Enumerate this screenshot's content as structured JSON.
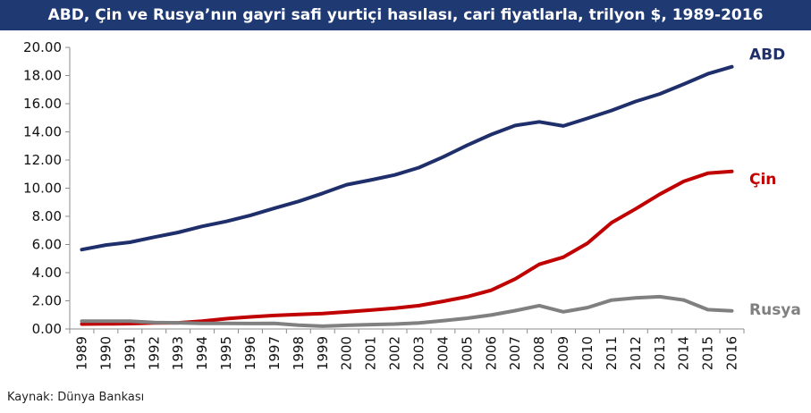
{
  "header": {
    "title": "ABD, Çin ve Rusya’nın gayri safi yurtiçi hasılası, cari fiyatlarla, trilyon $, 1989-2016",
    "background": "#1f3a73"
  },
  "footer": {
    "source": "Kaynak: Dünya Bankası"
  },
  "chart_data": {
    "type": "line",
    "title": "ABD, Çin ve Rusya’nın gayri safi yurtiçi hasılası, cari fiyatlarla, trilyon $, 1989-2016",
    "xlabel": "",
    "ylabel": "",
    "ylim": [
      0,
      20
    ],
    "yticks": [
      "0.00",
      "2.00",
      "4.00",
      "6.00",
      "8.00",
      "10.00",
      "12.00",
      "14.00",
      "16.00",
      "18.00",
      "20.00"
    ],
    "grid": false,
    "legend": "inline labels at line ends",
    "x": [
      "1989",
      "1990",
      "1991",
      "1992",
      "1993",
      "1994",
      "1995",
      "1996",
      "1997",
      "1998",
      "1999",
      "2000",
      "2001",
      "2002",
      "2003",
      "2004",
      "2005",
      "2006",
      "2007",
      "2008",
      "2009",
      "2010",
      "2011",
      "2012",
      "2013",
      "2014",
      "2015",
      "2016"
    ],
    "series": [
      {
        "name": "ABD",
        "color": "#1f2f6b",
        "values": [
          5.64,
          5.96,
          6.16,
          6.52,
          6.86,
          7.29,
          7.64,
          8.07,
          8.58,
          9.06,
          9.63,
          10.25,
          10.58,
          10.94,
          11.46,
          12.21,
          13.04,
          13.81,
          14.45,
          14.71,
          14.42,
          14.96,
          15.52,
          16.16,
          16.69,
          17.39,
          18.12,
          18.62
        ]
      },
      {
        "name": "Çin",
        "color": "#c00000",
        "values": [
          0.35,
          0.36,
          0.38,
          0.43,
          0.44,
          0.56,
          0.73,
          0.86,
          0.96,
          1.03,
          1.09,
          1.21,
          1.34,
          1.47,
          1.66,
          1.96,
          2.29,
          2.75,
          3.55,
          4.59,
          5.1,
          6.09,
          7.55,
          8.53,
          9.57,
          10.48,
          11.06,
          11.19
        ]
      },
      {
        "name": "Rusya",
        "color": "#808080",
        "values": [
          0.55,
          0.55,
          0.55,
          0.46,
          0.44,
          0.4,
          0.4,
          0.39,
          0.4,
          0.27,
          0.2,
          0.26,
          0.31,
          0.35,
          0.43,
          0.59,
          0.76,
          0.99,
          1.3,
          1.66,
          1.22,
          1.52,
          2.05,
          2.21,
          2.29,
          2.06,
          1.37,
          1.28
        ]
      }
    ]
  }
}
